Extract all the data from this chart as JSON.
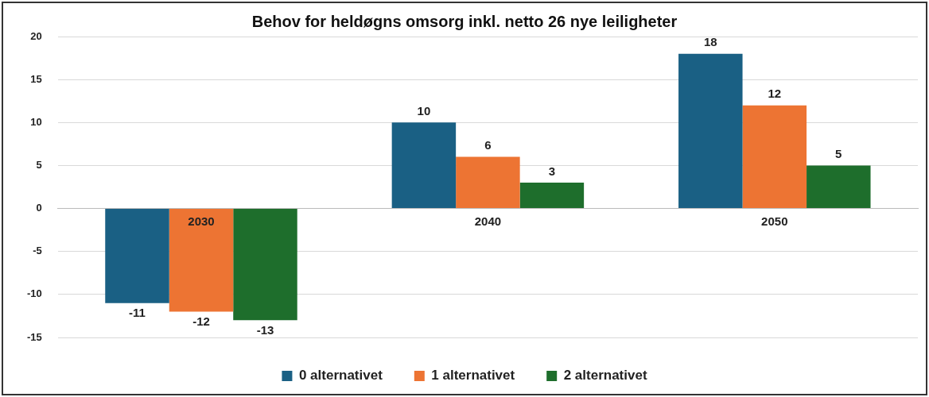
{
  "chart_data": {
    "type": "bar",
    "title": "Behov for heldøgns omsorg inkl. netto 26 nye leiligheter",
    "categories": [
      "2030",
      "2040",
      "2050"
    ],
    "series": [
      {
        "name": "0 alternativet",
        "color": "#1a6084",
        "values": [
          -11,
          10,
          18
        ]
      },
      {
        "name": "1 alternativet",
        "color": "#ed7433",
        "values": [
          -12,
          6,
          12
        ]
      },
      {
        "name": "2 alternativet",
        "color": "#1e6e2c",
        "values": [
          -13,
          3,
          5
        ]
      }
    ],
    "ylim": [
      -15,
      20
    ],
    "yticks": [
      -15,
      -10,
      -5,
      0,
      5,
      10,
      15,
      20
    ],
    "grid": "y",
    "legend": "bottom",
    "data_labels": true
  }
}
